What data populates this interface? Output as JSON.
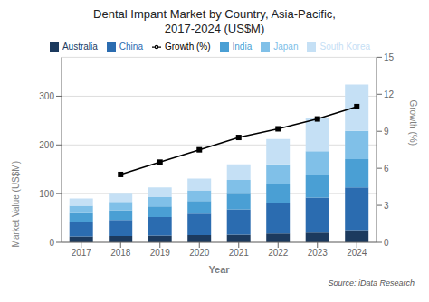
{
  "chart_data": {
    "type": "bar",
    "title": "Dental Impant Market by Country, Asia-Pacific,\n2017-2024 (US$M)",
    "xlabel": "Year",
    "ylabel": "Market Value (US$M)",
    "y2label": "Growth (%)",
    "annotations": [
      "Source: iData Research"
    ],
    "categories": [
      "2017",
      "2018",
      "2019",
      "2020",
      "2021",
      "2022",
      "2023",
      "2024"
    ],
    "series": [
      {
        "name": "Australia",
        "color": "#1c3a5e",
        "values": [
          12,
          13,
          14,
          15,
          16,
          18,
          20,
          25
        ]
      },
      {
        "name": "China",
        "color": "#2b6cb0",
        "values": [
          30,
          33,
          38,
          44,
          52,
          62,
          72,
          88
        ]
      },
      {
        "name": "India",
        "color": "#4a9fd4",
        "values": [
          18,
          20,
          22,
          26,
          32,
          40,
          47,
          58
        ]
      },
      {
        "name": "Japan",
        "color": "#80c0e8",
        "values": [
          15,
          17,
          19,
          22,
          28,
          40,
          48,
          58
        ]
      },
      {
        "name": "South Korea",
        "color": "#c5e0f5",
        "values": [
          15,
          17,
          20,
          24,
          32,
          52,
          68,
          95
        ]
      },
      {
        "name": "Growth (%)",
        "type": "line",
        "axis": "y2",
        "color": "#000000",
        "marker": "square",
        "values": [
          null,
          5.5,
          6.5,
          7.5,
          8.5,
          9.2,
          10.0,
          11.0
        ]
      }
    ],
    "stacked": true,
    "ylim": [
      0,
      380
    ],
    "yticks": [
      0,
      100,
      200,
      300
    ],
    "y2lim": [
      0,
      15
    ],
    "y2ticks": [
      0,
      3,
      6,
      9,
      12,
      15
    ],
    "grid": true,
    "legend": "top"
  }
}
